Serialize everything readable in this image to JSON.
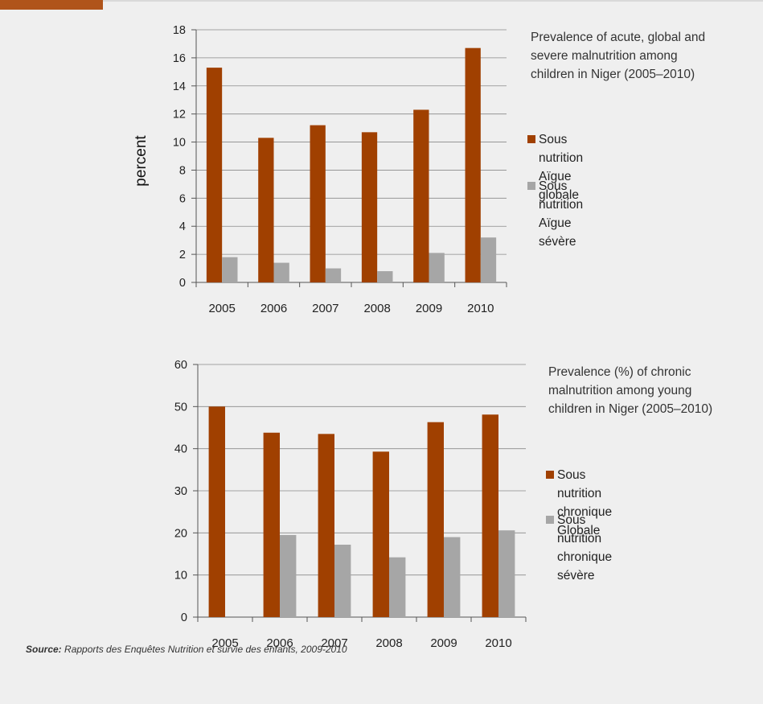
{
  "chart_data": [
    {
      "type": "bar",
      "title": "Prevalence of acute, global and\nsevere malnutrition among\nchildren in Niger (2005–2010)",
      "xlabel": "",
      "ylabel": "percent",
      "categories": [
        "2005",
        "2006",
        "2007",
        "2008",
        "2009",
        "2010"
      ],
      "ylim": [
        0,
        18
      ],
      "yticks": [
        0,
        2,
        4,
        6,
        8,
        10,
        12,
        14,
        16,
        18
      ],
      "series": [
        {
          "name": "Sous nutrition Aïgue\nglobale",
          "color": "#a04000",
          "values": [
            15.3,
            10.3,
            11.2,
            10.7,
            12.3,
            16.7
          ]
        },
        {
          "name": "Sous nutrition Aïgue sévère",
          "color": "#a6a6a6",
          "values": [
            1.8,
            1.4,
            1.0,
            0.8,
            2.1,
            3.2
          ]
        }
      ],
      "legend": "right",
      "grid": true
    },
    {
      "type": "bar",
      "title": "Prevalence (%) of chronic\nmalnutrition among young\nchildren in Niger (2005–2010)",
      "xlabel": "",
      "ylabel": "",
      "categories": [
        "2005",
        "2006",
        "2007",
        "2008",
        "2009",
        "2010"
      ],
      "ylim": [
        0,
        60
      ],
      "yticks": [
        0,
        10,
        20,
        30,
        40,
        50,
        60
      ],
      "series": [
        {
          "name": "Sous nutrition chronique\nGlobale",
          "color": "#a04000",
          "values": [
            50.0,
            43.8,
            43.5,
            39.3,
            46.3,
            48.1
          ]
        },
        {
          "name": "Sous nutrition chronique\nsévère",
          "color": "#a6a6a6",
          "values": [
            null,
            19.5,
            17.2,
            14.2,
            19.0,
            20.6
          ]
        }
      ],
      "legend": "right",
      "grid": true
    }
  ],
  "source": {
    "label": "Source:",
    "text": " Rapports des Enquêtes Nutrition et survie des enfants, 2009-2010"
  }
}
